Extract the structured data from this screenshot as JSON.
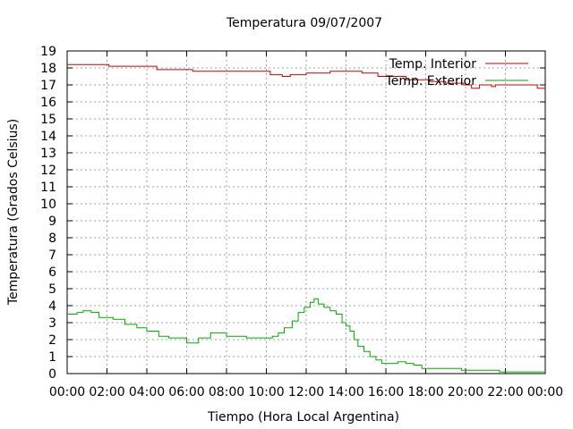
{
  "chart_data": {
    "type": "line",
    "title": "Temperatura 09/07/2007",
    "xlabel": "Tiempo (Hora Local Argentina)",
    "ylabel": "Temperatura (Grados Celsius)",
    "xlim": [
      0,
      24
    ],
    "ylim": [
      0,
      19
    ],
    "x_ticks": [
      0,
      2,
      4,
      6,
      8,
      10,
      12,
      14,
      16,
      18,
      20,
      22,
      24
    ],
    "x_tick_labels": [
      "00:00",
      "02:00",
      "04:00",
      "06:00",
      "08:00",
      "10:00",
      "12:00",
      "14:00",
      "16:00",
      "18:00",
      "20:00",
      "22:00",
      "00:00"
    ],
    "y_ticks": [
      0,
      1,
      2,
      3,
      4,
      5,
      6,
      7,
      8,
      9,
      10,
      11,
      12,
      13,
      14,
      15,
      16,
      17,
      18,
      19
    ],
    "grid": true,
    "legend_position": "top-right",
    "series": [
      {
        "name": "Temp. Interior",
        "color": "#cc0000",
        "x": [
          0,
          2.1,
          4.5,
          6.3,
          10.2,
          10.8,
          11.2,
          12.0,
          13.2,
          14.8,
          15.6,
          17.0,
          18.2,
          19.0,
          19.9,
          20.3,
          20.7,
          21.3,
          21.5,
          23.6,
          24.0
        ],
        "y": [
          18.2,
          18.1,
          17.9,
          17.8,
          17.6,
          17.5,
          17.6,
          17.7,
          17.8,
          17.7,
          17.5,
          17.3,
          17.2,
          17.1,
          17.0,
          16.8,
          17.0,
          16.9,
          17.0,
          16.8,
          16.8
        ]
      },
      {
        "name": "Temp. Exterior",
        "color": "#00aa00",
        "x": [
          0,
          0.5,
          0.8,
          1.2,
          1.6,
          2.3,
          2.9,
          3.5,
          4.0,
          4.6,
          5.1,
          6.0,
          6.3,
          6.6,
          7.2,
          8.0,
          9.0,
          9.7,
          10.3,
          10.6,
          10.9,
          11.3,
          11.6,
          11.9,
          12.2,
          12.4,
          12.6,
          12.9,
          13.2,
          13.5,
          13.8,
          14.0,
          14.2,
          14.4,
          14.6,
          14.9,
          15.2,
          15.5,
          15.8,
          16.2,
          16.6,
          17.0,
          17.4,
          17.8,
          18.3,
          19.0,
          19.8,
          20.7,
          21.7,
          22.7,
          23.5,
          24.0
        ],
        "y": [
          3.5,
          3.6,
          3.7,
          3.6,
          3.3,
          3.2,
          2.9,
          2.7,
          2.5,
          2.2,
          2.1,
          1.8,
          1.8,
          2.1,
          2.4,
          2.2,
          2.1,
          2.1,
          2.2,
          2.4,
          2.7,
          3.1,
          3.6,
          3.9,
          4.2,
          4.4,
          4.1,
          3.9,
          3.7,
          3.5,
          3.0,
          2.8,
          2.5,
          2.0,
          1.6,
          1.3,
          1.0,
          0.8,
          0.6,
          0.6,
          0.7,
          0.6,
          0.5,
          0.3,
          0.3,
          0.3,
          0.2,
          0.2,
          0.1,
          0.1,
          0.1,
          0.1
        ]
      }
    ]
  }
}
